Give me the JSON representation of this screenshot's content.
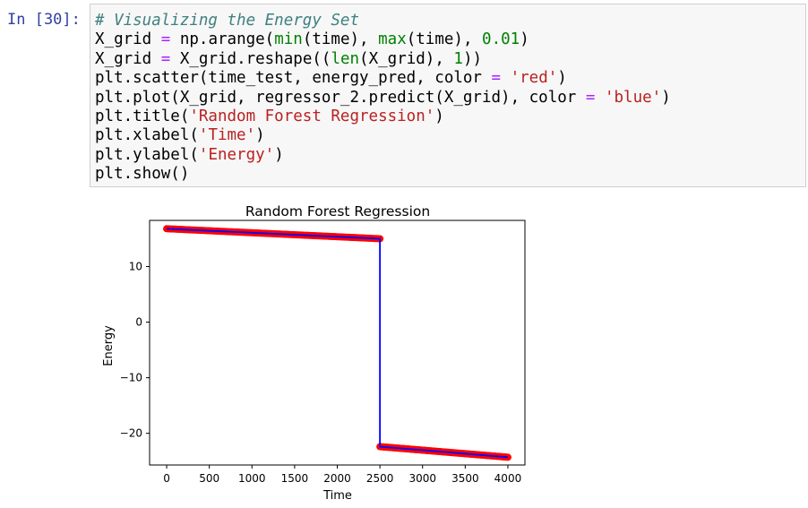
{
  "prompt": {
    "label": "In [30]:"
  },
  "code_lines": [
    [
      {
        "t": "# Visualizing the Energy Set",
        "c": "comment"
      }
    ],
    [
      {
        "t": "X_grid "
      },
      {
        "t": "=",
        "c": "op"
      },
      {
        "t": " np.arange("
      },
      {
        "t": "min",
        "c": "builtin"
      },
      {
        "t": "(time), "
      },
      {
        "t": "max",
        "c": "builtin"
      },
      {
        "t": "(time), "
      },
      {
        "t": "0.01",
        "c": "num"
      },
      {
        "t": ")"
      }
    ],
    [
      {
        "t": "X_grid "
      },
      {
        "t": "=",
        "c": "op"
      },
      {
        "t": " X_grid.reshape(("
      },
      {
        "t": "len",
        "c": "builtin"
      },
      {
        "t": "(X_grid), "
      },
      {
        "t": "1",
        "c": "num"
      },
      {
        "t": "))"
      }
    ],
    [
      {
        "t": "plt.scatter(time_test, energy_pred, color "
      },
      {
        "t": "=",
        "c": "op"
      },
      {
        "t": " "
      },
      {
        "t": "'red'",
        "c": "str"
      },
      {
        "t": ")"
      }
    ],
    [
      {
        "t": "plt.plot(X_grid, regressor_2.predict(X_grid), color "
      },
      {
        "t": "=",
        "c": "op"
      },
      {
        "t": " "
      },
      {
        "t": "'blue'",
        "c": "str"
      },
      {
        "t": ")"
      }
    ],
    [
      {
        "t": "plt.title("
      },
      {
        "t": "'Random Forest Regression'",
        "c": "str"
      },
      {
        "t": ")"
      }
    ],
    [
      {
        "t": "plt.xlabel("
      },
      {
        "t": "'Time'",
        "c": "str"
      },
      {
        "t": ")"
      }
    ],
    [
      {
        "t": "plt.ylabel("
      },
      {
        "t": "'Energy'",
        "c": "str"
      },
      {
        "t": ")"
      }
    ],
    [
      {
        "t": "plt.show()"
      }
    ]
  ],
  "chart_data": {
    "type": "scatter",
    "title": "Random Forest Regression",
    "xlabel": "Time",
    "ylabel": "Energy",
    "xlim": [
      -200,
      4200
    ],
    "ylim": [
      -25.7,
      18.3
    ],
    "xticks": [
      0,
      500,
      1000,
      1500,
      2000,
      2500,
      3000,
      3500,
      4000
    ],
    "yticks": [
      10,
      0,
      -10,
      -20
    ],
    "grid": false,
    "colors": {
      "scatter": "#ff0000",
      "line": "#0000ff",
      "axes": "#000000"
    },
    "series": [
      {
        "kind": "scatter",
        "color": "red",
        "segments": [
          {
            "x": [
              0,
              2500
            ],
            "y": [
              16.8,
              15.0
            ]
          },
          {
            "x": [
              2500,
              4000
            ],
            "y": [
              -22.4,
              -24.3
            ]
          }
        ]
      },
      {
        "kind": "line",
        "color": "blue",
        "x": [
          0,
          2500,
          2500,
          4000
        ],
        "y": [
          16.8,
          15.0,
          -22.4,
          -24.3
        ]
      }
    ]
  }
}
